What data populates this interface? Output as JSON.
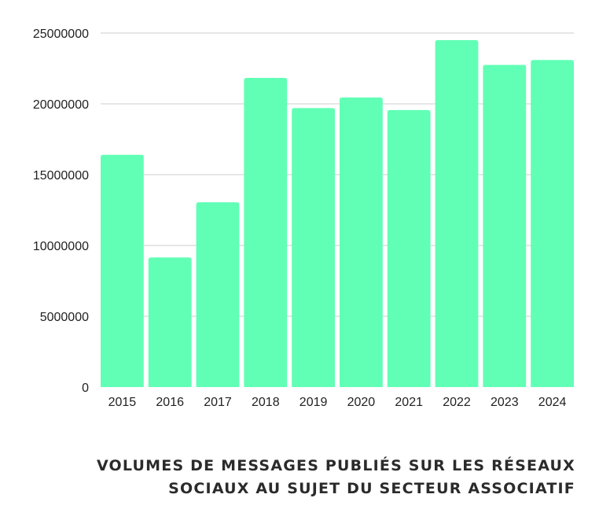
{
  "chart_data": {
    "type": "bar",
    "title_lines": [
      "VOLUMES DE MESSAGES PUBLIÉS SUR LES RÉSEAUX",
      "SOCIAUX AU SUJET DU SECTEUR ASSOCIATIF"
    ],
    "categories": [
      "2015",
      "2016",
      "2017",
      "2018",
      "2019",
      "2020",
      "2021",
      "2022",
      "2023",
      "2024"
    ],
    "values": [
      16400000,
      9150000,
      13050000,
      21830000,
      19700000,
      20450000,
      19560000,
      24500000,
      22750000,
      23100000
    ],
    "yticks": [
      0,
      5000000,
      10000000,
      15000000,
      20000000,
      25000000
    ],
    "ylim": [
      0,
      25000000
    ],
    "xlabel": "",
    "ylabel": "",
    "grid": true,
    "bar_color": "#61ffb5",
    "grid_color": "#cccccc"
  }
}
